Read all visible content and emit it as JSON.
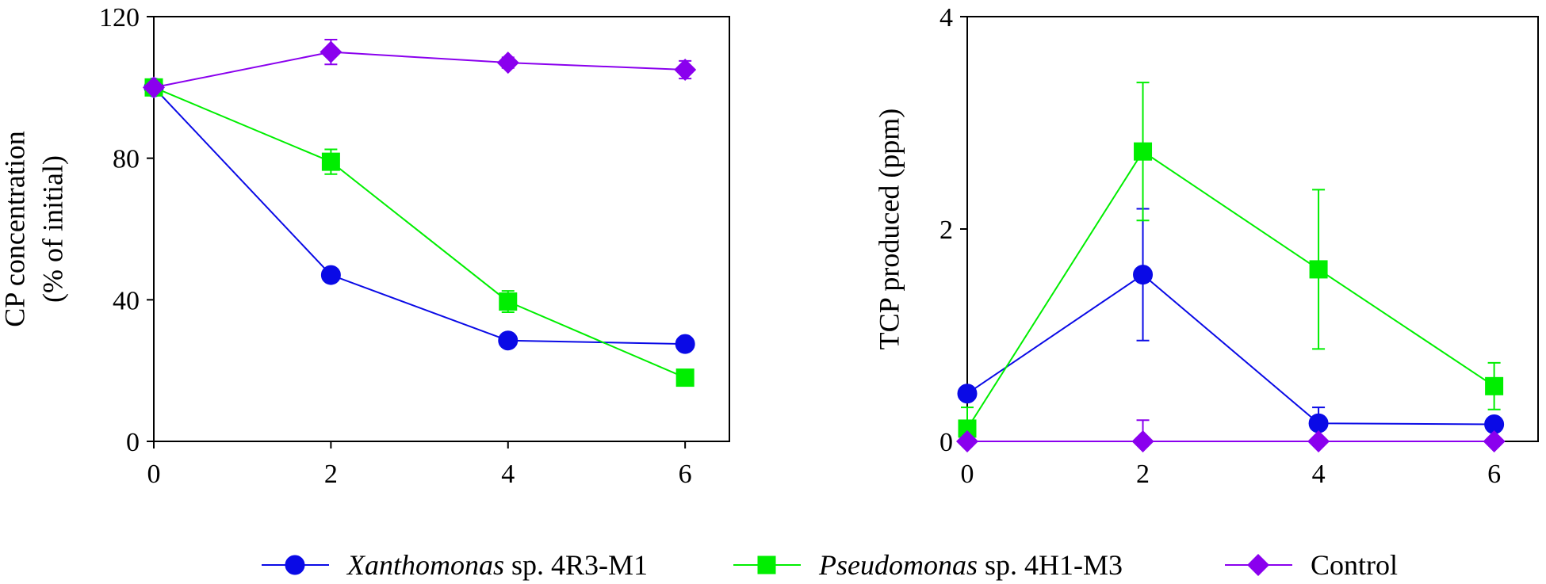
{
  "chart_data": [
    {
      "type": "line",
      "title": "",
      "xlabel": "",
      "ylabel_lines": [
        "CP concentration",
        "(% of initial)"
      ],
      "x": [
        0,
        2,
        4,
        6
      ],
      "xlim": [
        0,
        6.5
      ],
      "ylim": [
        0,
        120
      ],
      "xticks": [
        "0",
        "2",
        "4",
        "6"
      ],
      "yticks": [
        "0",
        "40",
        "80",
        "120"
      ],
      "series": [
        {
          "name": "Xanthomonas sp. 4R3-M1",
          "color": "#0a0ae6",
          "marker": "circle",
          "values": [
            100,
            47,
            28.5,
            27.5
          ],
          "errors": [
            1.5,
            1.5,
            1.5,
            1.5
          ]
        },
        {
          "name": "Pseudomonas sp. 4H1-M3",
          "color": "#00ee00",
          "marker": "square",
          "values": [
            100,
            79,
            39.5,
            18
          ],
          "errors": [
            1.5,
            3.5,
            3,
            1.5
          ]
        },
        {
          "name": "Control",
          "color": "#8a00ee",
          "marker": "diamond",
          "values": [
            100,
            110,
            107,
            105
          ],
          "errors": [
            1,
            3.5,
            1.5,
            2.5
          ]
        }
      ]
    },
    {
      "type": "line",
      "title": "",
      "xlabel": "",
      "ylabel_lines": [
        "TCP produced (ppm)"
      ],
      "x": [
        0,
        2,
        4,
        6
      ],
      "xlim": [
        0,
        6.5
      ],
      "ylim": [
        0,
        4
      ],
      "xticks": [
        "0",
        "2",
        "4",
        "6"
      ],
      "yticks": [
        "0",
        "2",
        "4"
      ],
      "series": [
        {
          "name": "Xanthomonas sp. 4R3-M1",
          "color": "#0a0ae6",
          "marker": "circle",
          "values": [
            0.45,
            1.57,
            0.17,
            0.16
          ],
          "errors": [
            0.05,
            0.62,
            0.15,
            0.05
          ]
        },
        {
          "name": "Pseudomonas sp. 4H1-M3",
          "color": "#00ee00",
          "marker": "square",
          "values": [
            0.12,
            2.73,
            1.62,
            0.52
          ],
          "errors": [
            0.2,
            0.65,
            0.75,
            0.22
          ]
        },
        {
          "name": "Control",
          "color": "#8a00ee",
          "marker": "diamond",
          "values": [
            0,
            0,
            0,
            0
          ],
          "errors": [
            0,
            0.2,
            0,
            0
          ]
        }
      ]
    }
  ],
  "legend": {
    "placement": "bottom-center",
    "entries": [
      {
        "italic": "Xanthomonas",
        "rest": " sp. 4R3-M1",
        "color": "#0a0ae6",
        "marker": "circle"
      },
      {
        "italic": "Pseudomonas",
        "rest": " sp. 4H1-M3",
        "color": "#00ee00",
        "marker": "square"
      },
      {
        "italic": "",
        "rest": "Control",
        "color": "#8a00ee",
        "marker": "diamond"
      }
    ]
  }
}
